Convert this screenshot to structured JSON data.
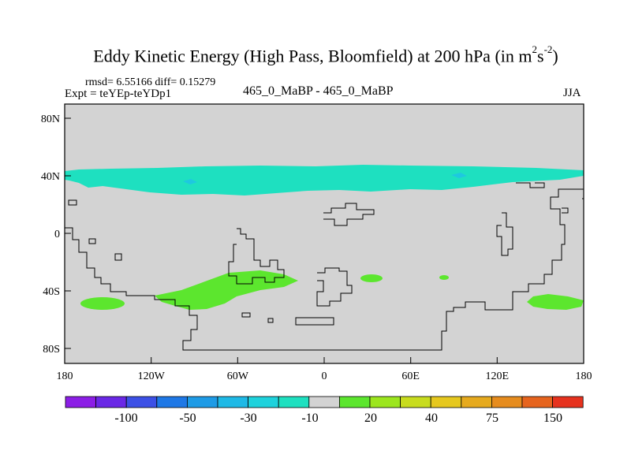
{
  "header": {
    "title_main": "Eddy Kinetic Energy (High Pass, Bloomfield) at 200 hPa (in m",
    "title_sup1": "2",
    "title_s": "s",
    "title_sup2": "-2",
    "title_close": ")",
    "stats": "rmsd= 6.55166 diff= 0.15279",
    "expt": "Expt = teYEp-teYDp1",
    "case": "465_0_MaBP - 465_0_MaBP",
    "season": "JJA"
  },
  "colors": {
    "land_bg": "#d3d3d3",
    "teal": "#1ee0c0",
    "cyan_spot": "#1ec8e0",
    "green": "#5ce62e"
  },
  "chart_data": {
    "type": "map",
    "variable": "Eddy kinetic energy difference at 200 hPa",
    "units": "m^2 s^-2",
    "x_ticks": [
      "180",
      "120W",
      "60W",
      "0",
      "60E",
      "120E",
      "180"
    ],
    "y_ticks": [
      "80N",
      "40N",
      "0",
      "40S",
      "80S"
    ],
    "lon_range": [
      -180,
      180
    ],
    "lat_range": [
      -90,
      90
    ],
    "colorbar": {
      "colors": [
        "#8c1ee6",
        "#6a28e6",
        "#3c50e6",
        "#1e78e6",
        "#1e9be6",
        "#1eb9e6",
        "#1ed2dc",
        "#1ee0c0",
        "#d3d3d3",
        "#5ce62e",
        "#9ce61e",
        "#c8dc1e",
        "#e6c81e",
        "#e6aa1e",
        "#e68c1e",
        "#e6641e",
        "#e6321e"
      ],
      "labels": [
        "-100",
        "-50",
        "-30",
        "-10",
        "20",
        "40",
        "75",
        "150"
      ]
    },
    "features": [
      {
        "name": "northern-teal-band",
        "value_range": "-10 to -20",
        "lat_center": 40
      },
      {
        "name": "southern-green-patches",
        "value_range": "10 to 20",
        "lat_center": -40
      }
    ]
  }
}
